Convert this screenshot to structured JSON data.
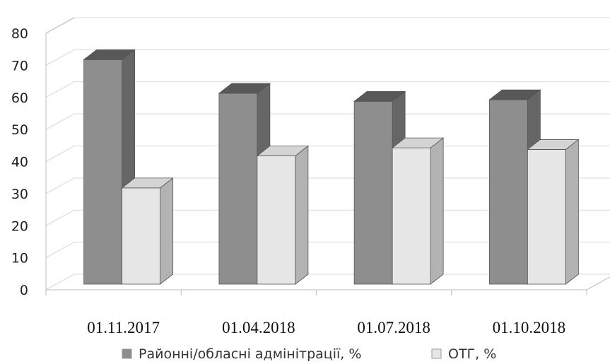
{
  "chart_data": {
    "type": "bar",
    "categories": [
      "01.11.2017",
      "01.04.2018",
      "01.07.2018",
      "01.10.2018"
    ],
    "series": [
      {
        "name": "Районні/обласні адмінітрації, %",
        "values": [
          70,
          59.5,
          57,
          57.5
        ],
        "color": "#8e8e8e"
      },
      {
        "name": "ОТГ, %",
        "values": [
          30,
          40,
          42.5,
          42
        ],
        "color": "#e6e6e6"
      }
    ],
    "ylim": [
      0,
      80
    ],
    "yticks": [
      0,
      10,
      20,
      30,
      40,
      50,
      60,
      70,
      80
    ],
    "grid": true,
    "legend": "bottom",
    "style": "3d-clustered-column"
  }
}
